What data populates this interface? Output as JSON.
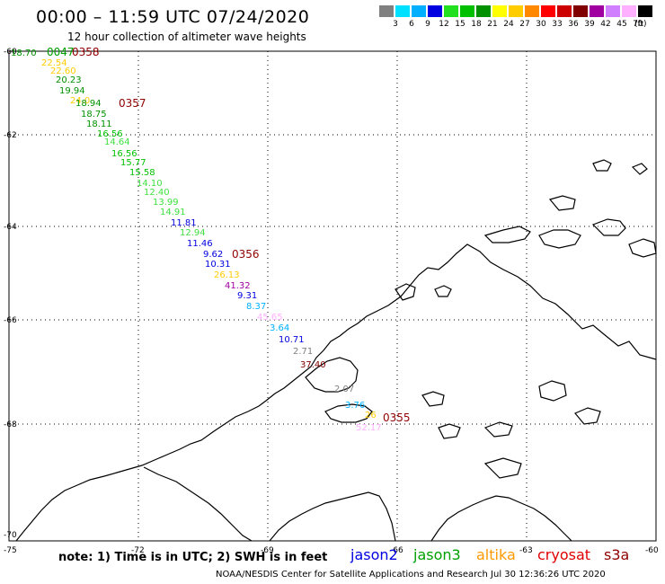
{
  "title": "00:00 – 11:59 UTC 07/24/2020",
  "subtitle": "12 hour collection of altimeter wave heights",
  "note": "note: 1) Time is in UTC; 2) SWH is in feet",
  "credit": "NOAA/NESDIS Center for Satellite Applications and Research    Jul 30 12:36:26 UTC 2020",
  "satellites": [
    {
      "name": "jason2",
      "color": "#0000e0"
    },
    {
      "name": "jason3",
      "color": "#00a000"
    },
    {
      "name": "altika",
      "color": "#ff9900"
    },
    {
      "name": "cryosat",
      "color": "#e00000"
    },
    {
      "name": "s3a",
      "color": "#900000"
    }
  ],
  "scale": {
    "labels": [
      "3",
      "6",
      "9",
      "12",
      "15",
      "18",
      "21",
      "24",
      "27",
      "30",
      "33",
      "36",
      "39",
      "42",
      "45",
      "70"
    ],
    "unit": "(ft)",
    "colors": [
      "#808080",
      "#00e0ff",
      "#00b0ff",
      "#0000e0",
      "#20e020",
      "#00c000",
      "#009000",
      "#ffff00",
      "#ffcc00",
      "#ff8800",
      "#ff0000",
      "#cc0000",
      "#800000",
      "#a000a0",
      "#d080ff",
      "#ffb0ff",
      "#000000"
    ]
  },
  "axes": {
    "lon_labels": [
      "-75",
      "-72",
      "-69",
      "-66",
      "-63",
      "-60"
    ],
    "lat_labels": [
      "-60",
      "-62",
      "-64",
      "-66",
      "-68",
      "-70"
    ]
  },
  "time_labels": [
    {
      "text": "0047",
      "color": "#00a000"
    },
    {
      "text": "0358",
      "color": "#900000"
    },
    {
      "text": "0357",
      "color": "#900000"
    },
    {
      "text": "0356",
      "color": "#900000"
    },
    {
      "text": "0355",
      "color": "#900000"
    }
  ],
  "wave_heights": [
    {
      "text": "18.70",
      "color": "#009000"
    },
    {
      "text": "22.54",
      "color": "#ffcc00"
    },
    {
      "text": "22.60",
      "color": "#ffcc00"
    },
    {
      "text": "20.23",
      "color": "#009000"
    },
    {
      "text": "19.94",
      "color": "#009000"
    },
    {
      "text": "24.0",
      "color": "#ffcc00"
    },
    {
      "text": "18.94",
      "color": "#009000"
    },
    {
      "text": "18.75",
      "color": "#009000"
    },
    {
      "text": "18.11",
      "color": "#009000"
    },
    {
      "text": "16.56",
      "color": "#00c000"
    },
    {
      "text": "14.64",
      "color": "#40e040"
    },
    {
      "text": "16.56",
      "color": "#00c000"
    },
    {
      "text": "15.77",
      "color": "#00c000"
    },
    {
      "text": "15.58",
      "color": "#00c000"
    },
    {
      "text": "14.10",
      "color": "#40e040"
    },
    {
      "text": "12.40",
      "color": "#40e040"
    },
    {
      "text": "13.99",
      "color": "#40e040"
    },
    {
      "text": "14.91",
      "color": "#40e040"
    },
    {
      "text": "11.81",
      "color": "#0000e0"
    },
    {
      "text": "12.94",
      "color": "#40e040"
    },
    {
      "text": "11.46",
      "color": "#0000e0"
    },
    {
      "text": "9.62",
      "color": "#0000e0"
    },
    {
      "text": "10.31",
      "color": "#0000e0"
    },
    {
      "text": "26.13",
      "color": "#ffcc00"
    },
    {
      "text": "41.32",
      "color": "#a000a0"
    },
    {
      "text": "9.31",
      "color": "#0000e0"
    },
    {
      "text": "8.37",
      "color": "#00b0ff"
    },
    {
      "text": "45.65",
      "color": "#ffb0ff"
    },
    {
      "text": "3.64",
      "color": "#00b0ff"
    },
    {
      "text": "10.71",
      "color": "#0000e0"
    },
    {
      "text": "2.71",
      "color": "#808080"
    },
    {
      "text": "37.40",
      "color": "#800000"
    },
    {
      "text": "2.07",
      "color": "#808080"
    },
    {
      "text": "3.76",
      "color": "#00b0ff"
    },
    {
      "text": "26",
      "color": "#ffcc00"
    },
    {
      "text": "52.17",
      "color": "#ffb0ff"
    }
  ]
}
